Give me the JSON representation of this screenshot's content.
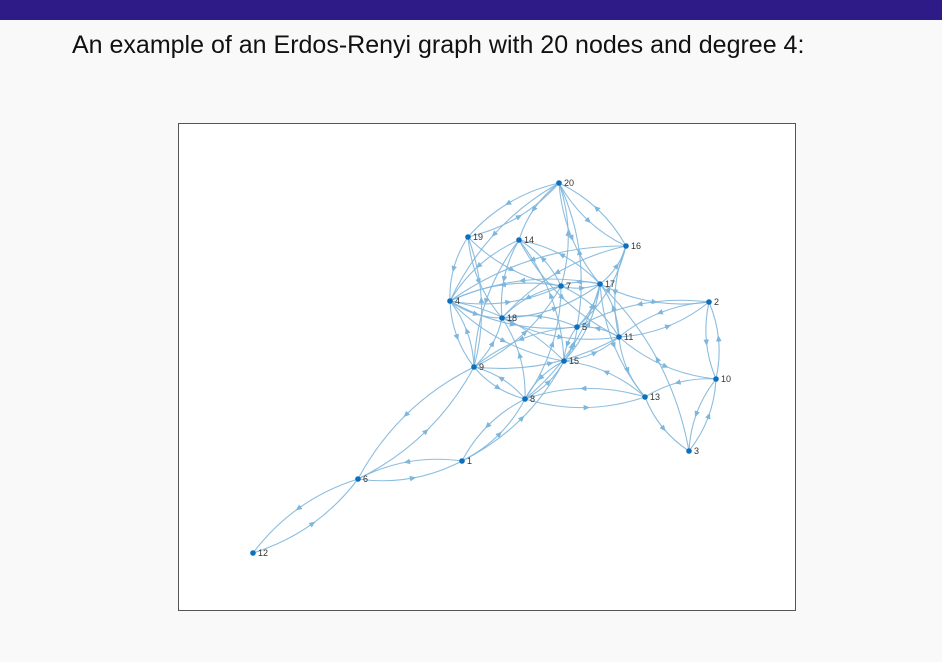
{
  "slide": {
    "title": "An example of an Erdos-Renyi graph with 20 nodes and degree 4:"
  },
  "colors": {
    "header_bar": "#2f1b87",
    "edge": "#7fb6dc",
    "node": "#0e6fbd"
  },
  "graph": {
    "nodes": [
      {
        "id": "1"
      },
      {
        "id": "2"
      },
      {
        "id": "3"
      },
      {
        "id": "4"
      },
      {
        "id": "5"
      },
      {
        "id": "6"
      },
      {
        "id": "7"
      },
      {
        "id": "8"
      },
      {
        "id": "9"
      },
      {
        "id": "10"
      },
      {
        "id": "11"
      },
      {
        "id": "12"
      },
      {
        "id": "13"
      },
      {
        "id": "14"
      },
      {
        "id": "15"
      },
      {
        "id": "16"
      },
      {
        "id": "17"
      },
      {
        "id": "18"
      },
      {
        "id": "19"
      },
      {
        "id": "20"
      }
    ],
    "edges": [
      [
        "12",
        "6"
      ],
      [
        "6",
        "12"
      ],
      [
        "6",
        "9"
      ],
      [
        "9",
        "6"
      ],
      [
        "6",
        "1"
      ],
      [
        "1",
        "6"
      ],
      [
        "1",
        "8"
      ],
      [
        "8",
        "1"
      ],
      [
        "1",
        "15"
      ],
      [
        "9",
        "4"
      ],
      [
        "4",
        "9"
      ],
      [
        "9",
        "19"
      ],
      [
        "9",
        "18"
      ],
      [
        "9",
        "11"
      ],
      [
        "9",
        "7"
      ],
      [
        "9",
        "8"
      ],
      [
        "8",
        "9"
      ],
      [
        "8",
        "18"
      ],
      [
        "8",
        "7"
      ],
      [
        "8",
        "17"
      ],
      [
        "8",
        "13"
      ],
      [
        "13",
        "8"
      ],
      [
        "8",
        "15"
      ],
      [
        "15",
        "8"
      ],
      [
        "15",
        "4"
      ],
      [
        "15",
        "14"
      ],
      [
        "15",
        "17"
      ],
      [
        "15",
        "5"
      ],
      [
        "5",
        "15"
      ],
      [
        "15",
        "11"
      ],
      [
        "5",
        "18"
      ],
      [
        "5",
        "20"
      ],
      [
        "5",
        "16"
      ],
      [
        "5",
        "17"
      ],
      [
        "5",
        "9"
      ],
      [
        "11",
        "5"
      ],
      [
        "11",
        "17"
      ],
      [
        "11",
        "2"
      ],
      [
        "2",
        "11"
      ],
      [
        "11",
        "10"
      ],
      [
        "11",
        "13"
      ],
      [
        "11",
        "7"
      ],
      [
        "7",
        "4"
      ],
      [
        "4",
        "7"
      ],
      [
        "7",
        "14"
      ],
      [
        "7",
        "18"
      ],
      [
        "7",
        "20"
      ],
      [
        "7",
        "17"
      ],
      [
        "17",
        "7"
      ],
      [
        "17",
        "16"
      ],
      [
        "17",
        "2"
      ],
      [
        "17",
        "13"
      ],
      [
        "17",
        "14"
      ],
      [
        "17",
        "4"
      ],
      [
        "2",
        "10"
      ],
      [
        "10",
        "2"
      ],
      [
        "2",
        "5"
      ],
      [
        "10",
        "3"
      ],
      [
        "3",
        "10"
      ],
      [
        "10",
        "13"
      ],
      [
        "13",
        "3"
      ],
      [
        "3",
        "17"
      ],
      [
        "13",
        "15"
      ],
      [
        "16",
        "20"
      ],
      [
        "20",
        "16"
      ],
      [
        "16",
        "18"
      ],
      [
        "16",
        "11"
      ],
      [
        "16",
        "4"
      ],
      [
        "20",
        "19"
      ],
      [
        "19",
        "20"
      ],
      [
        "20",
        "14"
      ],
      [
        "20",
        "4"
      ],
      [
        "20",
        "17"
      ],
      [
        "19",
        "4"
      ],
      [
        "19",
        "7"
      ],
      [
        "19",
        "18"
      ],
      [
        "14",
        "18"
      ],
      [
        "14",
        "4"
      ],
      [
        "14",
        "11"
      ],
      [
        "14",
        "9"
      ],
      [
        "18",
        "11"
      ],
      [
        "18",
        "17"
      ],
      [
        "4",
        "18"
      ],
      [
        "4",
        "5"
      ],
      [
        "4",
        "15"
      ]
    ]
  }
}
